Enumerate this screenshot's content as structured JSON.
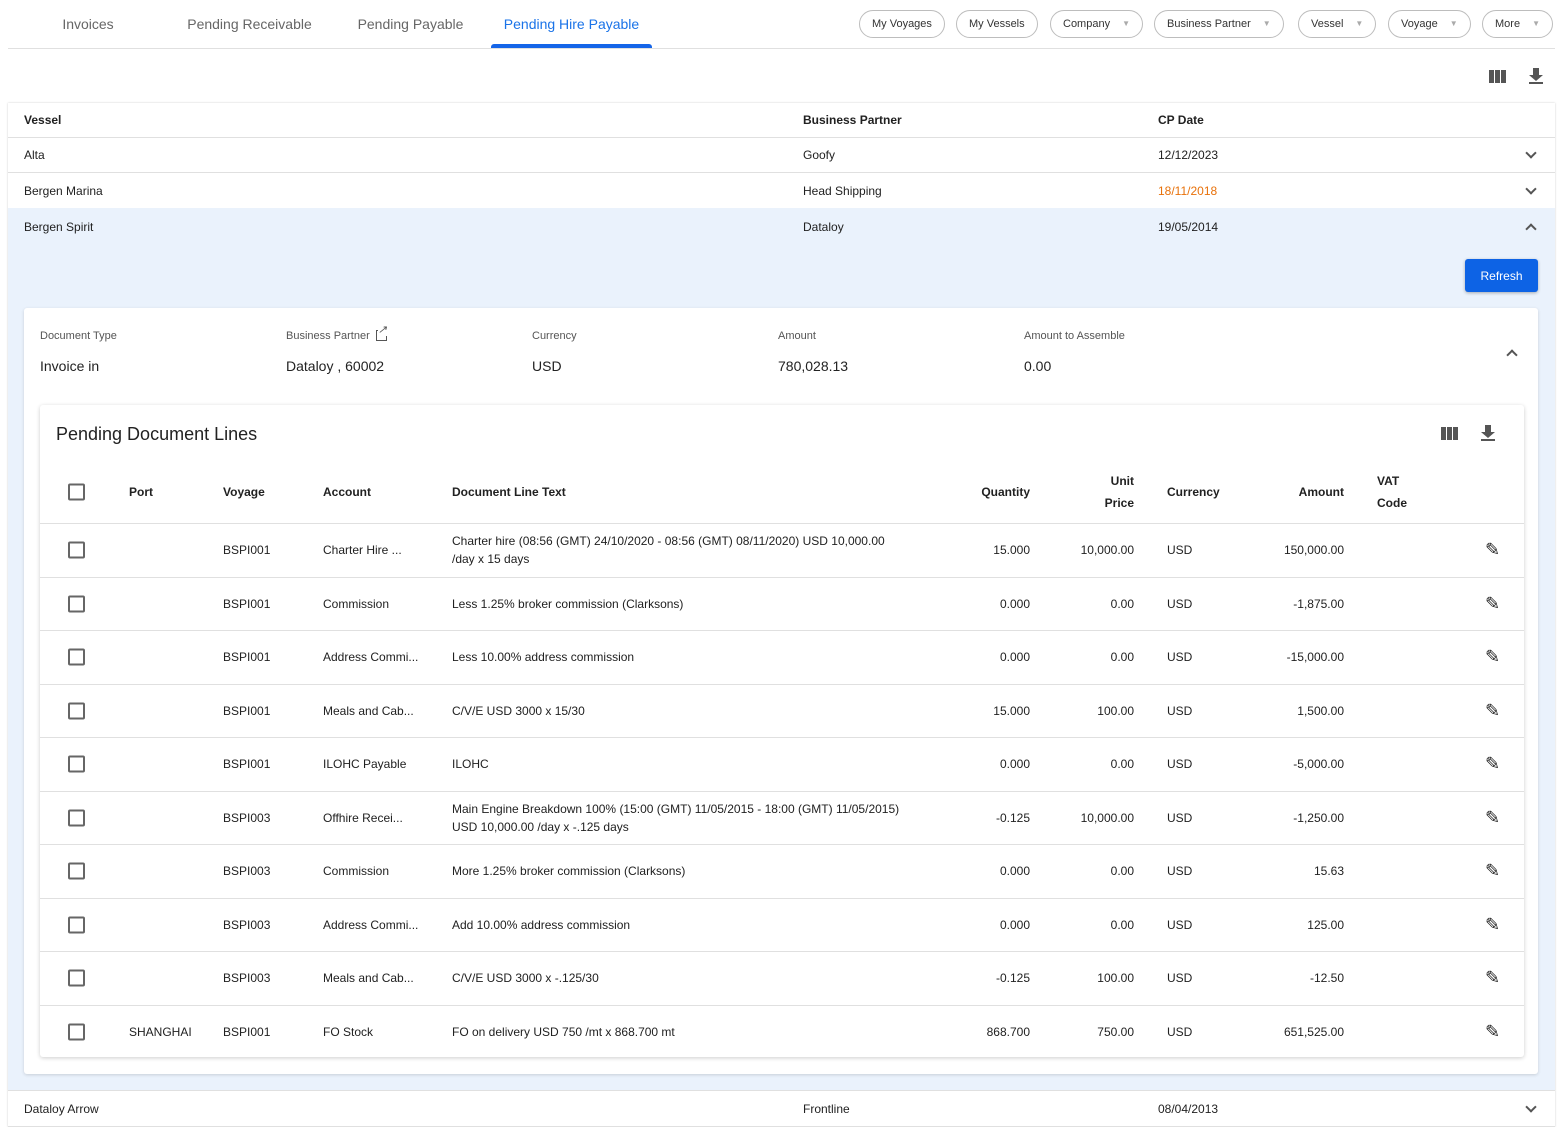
{
  "tabs": [
    "Invoices",
    "Pending Receivable",
    "Pending Payable",
    "Pending Hire Payable"
  ],
  "active_tab": "Pending Hire Payable",
  "filters": [
    "My Voyages",
    "My Vessels",
    "Company",
    "Business Partner",
    "Vessel",
    "Voyage",
    "More"
  ],
  "table": {
    "headers": {
      "vessel": "Vessel",
      "partner": "Business Partner",
      "cp_date": "CP Date"
    },
    "rows": [
      {
        "vessel": "Alta",
        "partner": "Goofy",
        "cp_date": "12/12/2023"
      },
      {
        "vessel": "Bergen Marina",
        "partner": "Head Shipping",
        "cp_date": "18/11/2018",
        "date_color": "#e8710a"
      },
      {
        "vessel": "Bergen Spirit",
        "partner": "Dataloy",
        "cp_date": "19/05/2014"
      },
      {
        "vessel": "Dataloy Arrow",
        "partner": "Frontline",
        "cp_date": "08/04/2013"
      }
    ]
  },
  "expanded": {
    "refresh_label": "Refresh",
    "summary": {
      "doc_type_label": "Document Type",
      "doc_type": "Invoice in",
      "partner_label": "Business Partner",
      "partner": "Dataloy , 60002",
      "currency_label": "Currency",
      "currency": "USD",
      "amount_label": "Amount",
      "amount": "780,028.13",
      "assemble_label": "Amount to Assemble",
      "assemble": "0.00"
    },
    "lines": {
      "title": "Pending Document Lines",
      "headers": {
        "port": "Port",
        "voyage": "Voyage",
        "account": "Account",
        "text": "Document Line Text",
        "quantity": "Quantity",
        "unit_price_1": "Unit",
        "unit_price_2": "Price",
        "currency": "Currency",
        "amount": "Amount",
        "vat_1": "VAT",
        "vat_2": "Code"
      },
      "rows": [
        {
          "port": "",
          "voyage": "BSPI001",
          "account": "Charter Hire ...",
          "text1": "Charter hire (08:56 (GMT) 24/10/2020 - 08:56 (GMT) 08/11/2020) USD 10,000.00",
          "text2": "/day x 15 days",
          "quantity": "15.000",
          "unit_price": "10,000.00",
          "currency": "USD",
          "amount": "150,000.00"
        },
        {
          "port": "",
          "voyage": "BSPI001",
          "account": "Commission",
          "text1": "Less 1.25% broker commission (Clarksons)",
          "text2": "",
          "quantity": "0.000",
          "unit_price": "0.00",
          "currency": "USD",
          "amount": "-1,875.00"
        },
        {
          "port": "",
          "voyage": "BSPI001",
          "account": "Address Commi...",
          "text1": "Less 10.00% address commission",
          "text2": "",
          "quantity": "0.000",
          "unit_price": "0.00",
          "currency": "USD",
          "amount": "-15,000.00"
        },
        {
          "port": "",
          "voyage": "BSPI001",
          "account": "Meals and Cab...",
          "text1": "C/V/E USD 3000 x 15/30",
          "text2": "",
          "quantity": "15.000",
          "unit_price": "100.00",
          "currency": "USD",
          "amount": "1,500.00"
        },
        {
          "port": "",
          "voyage": "BSPI001",
          "account": "ILOHC Payable",
          "text1": "ILOHC",
          "text2": "",
          "quantity": "0.000",
          "unit_price": "0.00",
          "currency": "USD",
          "amount": "-5,000.00"
        },
        {
          "port": "",
          "voyage": "BSPI003",
          "account": "Offhire Recei...",
          "text1": "Main Engine Breakdown 100% (15:00 (GMT) 11/05/2015 - 18:00 (GMT) 11/05/2015)",
          "text2": "USD 10,000.00 /day x -.125 days",
          "quantity": "-0.125",
          "unit_price": "10,000.00",
          "currency": "USD",
          "amount": "-1,250.00"
        },
        {
          "port": "",
          "voyage": "BSPI003",
          "account": "Commission",
          "text1": "More 1.25% broker commission (Clarksons)",
          "text2": "",
          "quantity": "0.000",
          "unit_price": "0.00",
          "currency": "USD",
          "amount": "15.63"
        },
        {
          "port": "",
          "voyage": "BSPI003",
          "account": "Address Commi...",
          "text1": "Add 10.00% address commission",
          "text2": "",
          "quantity": "0.000",
          "unit_price": "0.00",
          "currency": "USD",
          "amount": "125.00"
        },
        {
          "port": "",
          "voyage": "BSPI003",
          "account": "Meals and Cab...",
          "text1": "C/V/E USD 3000 x -.125/30",
          "text2": "",
          "quantity": "-0.125",
          "unit_price": "100.00",
          "currency": "USD",
          "amount": "-12.50"
        },
        {
          "port": "SHANGHAI",
          "voyage": "BSPI001",
          "account": "FO Stock",
          "text1": "FO on delivery USD 750 /mt x 868.700 mt",
          "text2": "",
          "quantity": "868.700",
          "unit_price": "750.00",
          "currency": "USD",
          "amount": "651,525.00"
        }
      ]
    }
  },
  "colors": {
    "accent": "#1565e8",
    "expanded_bg": "#eaf2fc",
    "warning_date": "#e8710a"
  }
}
